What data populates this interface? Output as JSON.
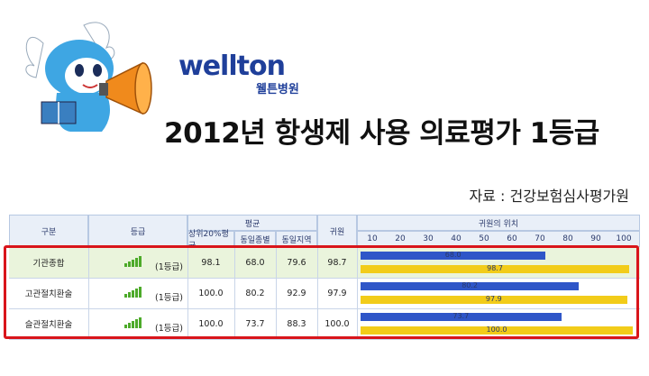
{
  "logo": {
    "english": "wellton",
    "korean": "웰튼병원"
  },
  "headline": "2012년 항생제 사용 의료평가 1등급",
  "source": "자료 : 건강보험심사평가원",
  "table": {
    "headers": {
      "category": "구분",
      "grade": "등급",
      "average": "평균",
      "avg_cols": [
        "상위20%평균",
        "동일종별",
        "동일지역"
      ],
      "hospital": "귀원",
      "position": "귀원의 위치",
      "scale": [
        "10",
        "20",
        "30",
        "40",
        "50",
        "60",
        "70",
        "80",
        "90",
        "100"
      ]
    },
    "rows": [
      {
        "category": "기관종합",
        "grade": "(1등급)",
        "top20": "98.1",
        "same_type": "68.0",
        "same_region": "79.6",
        "hospital": "98.7",
        "bar_blue": 68.0,
        "bar_yellow": 98.7,
        "bar_blue_label": "68.0",
        "bar_yellow_label": "98.7"
      },
      {
        "category": "고관절치환술",
        "grade": "(1등급)",
        "top20": "100.0",
        "same_type": "80.2",
        "same_region": "92.9",
        "hospital": "97.9",
        "bar_blue": 80.2,
        "bar_yellow": 97.9,
        "bar_blue_label": "80.2",
        "bar_yellow_label": "97.9"
      },
      {
        "category": "슬관절치환술",
        "grade": "(1등급)",
        "top20": "100.0",
        "same_type": "73.7",
        "same_region": "88.3",
        "hospital": "100.0",
        "bar_blue": 73.7,
        "bar_yellow": 100.0,
        "bar_blue_label": "73.7",
        "bar_yellow_label": "100.0"
      }
    ]
  },
  "colors": {
    "blue_bar": "#2f56c8",
    "yellow_bar": "#f2cc1a",
    "highlight": "#d9151b",
    "header_bg": "#e9eff8",
    "first_row_bg": "#eaf4dc"
  }
}
